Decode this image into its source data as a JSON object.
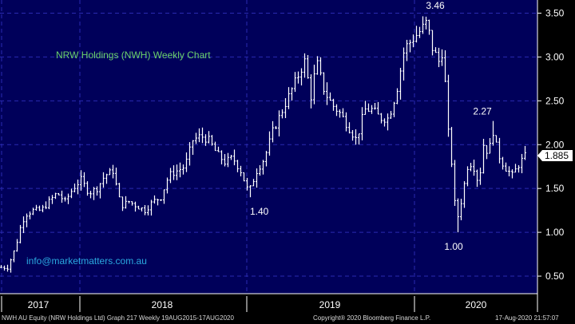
{
  "colors": {
    "background": "#00005a",
    "grid": "#2a2ab0",
    "bars": "#ffffff",
    "title": "#6cd36c",
    "email": "#2aa9e0",
    "axis_panel": "#000000"
  },
  "chart_data": {
    "type": "ohlc",
    "title": "NRW Holdings (NWH) Weekly Chart",
    "contact": "info@marketmatters.com.au",
    "ylim": [
      0.3,
      3.65
    ],
    "y_ticks": [
      "0.50",
      "1.00",
      "1.50",
      "2.00",
      "2.50",
      "3.00",
      "3.50"
    ],
    "x_ticks": [
      "2017",
      "2018",
      "2019",
      "2020"
    ],
    "last_price": "1.885",
    "annotations": [
      {
        "label": "1.40",
        "value": 1.4
      },
      {
        "label": "3.46",
        "value": 3.46
      },
      {
        "label": "1.00",
        "value": 1.0
      },
      {
        "label": "2.27",
        "value": 2.27
      }
    ],
    "anchors": [
      {
        "x": 0,
        "y": 0.6
      },
      {
        "x": 8,
        "y": 0.6
      },
      {
        "x": 10,
        "y": 0.66
      },
      {
        "x": 14,
        "y": 0.72
      },
      {
        "x": 16,
        "y": 0.78
      },
      {
        "x": 20,
        "y": 0.9
      },
      {
        "x": 24,
        "y": 1.05
      },
      {
        "x": 30,
        "y": 1.2
      },
      {
        "x": 40,
        "y": 1.25
      },
      {
        "x": 50,
        "y": 1.25
      },
      {
        "x": 60,
        "y": 1.35
      },
      {
        "x": 70,
        "y": 1.45
      },
      {
        "x": 80,
        "y": 1.35
      },
      {
        "x": 90,
        "y": 1.5
      },
      {
        "x": 100,
        "y": 1.6
      },
      {
        "x": 110,
        "y": 1.45
      },
      {
        "x": 120,
        "y": 1.5
      },
      {
        "x": 130,
        "y": 1.65
      },
      {
        "x": 140,
        "y": 1.7
      },
      {
        "x": 150,
        "y": 1.3
      },
      {
        "x": 160,
        "y": 1.35
      },
      {
        "x": 170,
        "y": 1.3
      },
      {
        "x": 180,
        "y": 1.25
      },
      {
        "x": 190,
        "y": 1.35
      },
      {
        "x": 200,
        "y": 1.4
      },
      {
        "x": 210,
        "y": 1.65
      },
      {
        "x": 220,
        "y": 1.7
      },
      {
        "x": 230,
        "y": 1.75
      },
      {
        "x": 240,
        "y": 2.05
      },
      {
        "x": 250,
        "y": 2.1
      },
      {
        "x": 260,
        "y": 2.05
      },
      {
        "x": 270,
        "y": 1.9
      },
      {
        "x": 280,
        "y": 1.8
      },
      {
        "x": 290,
        "y": 1.85
      },
      {
        "x": 300,
        "y": 1.7
      },
      {
        "x": 310,
        "y": 1.45
      },
      {
        "x": 320,
        "y": 1.7
      },
      {
        "x": 330,
        "y": 1.85
      },
      {
        "x": 340,
        "y": 2.15
      },
      {
        "x": 350,
        "y": 2.35
      },
      {
        "x": 360,
        "y": 2.55
      },
      {
        "x": 370,
        "y": 2.75
      },
      {
        "x": 380,
        "y": 2.95
      },
      {
        "x": 388,
        "y": 2.55
      },
      {
        "x": 395,
        "y": 2.95
      },
      {
        "x": 405,
        "y": 2.6
      },
      {
        "x": 415,
        "y": 2.45
      },
      {
        "x": 425,
        "y": 2.35
      },
      {
        "x": 435,
        "y": 2.2
      },
      {
        "x": 445,
        "y": 2.05
      },
      {
        "x": 455,
        "y": 2.4
      },
      {
        "x": 465,
        "y": 2.4
      },
      {
        "x": 475,
        "y": 2.3
      },
      {
        "x": 485,
        "y": 2.3
      },
      {
        "x": 495,
        "y": 2.6
      },
      {
        "x": 505,
        "y": 3.1
      },
      {
        "x": 515,
        "y": 3.2
      },
      {
        "x": 525,
        "y": 3.3
      },
      {
        "x": 533,
        "y": 3.4
      },
      {
        "x": 540,
        "y": 3.1
      },
      {
        "x": 548,
        "y": 2.95
      },
      {
        "x": 554,
        "y": 3.1
      },
      {
        "x": 558,
        "y": 2.3
      },
      {
        "x": 564,
        "y": 1.8
      },
      {
        "x": 570,
        "y": 1.1
      },
      {
        "x": 576,
        "y": 1.35
      },
      {
        "x": 584,
        "y": 1.75
      },
      {
        "x": 590,
        "y": 1.8
      },
      {
        "x": 598,
        "y": 1.55
      },
      {
        "x": 604,
        "y": 2.0
      },
      {
        "x": 610,
        "y": 1.9
      },
      {
        "x": 616,
        "y": 2.15
      },
      {
        "x": 622,
        "y": 1.9
      },
      {
        "x": 630,
        "y": 1.75
      },
      {
        "x": 640,
        "y": 1.65
      },
      {
        "x": 650,
        "y": 1.8
      },
      {
        "x": 658,
        "y": 1.89
      }
    ],
    "extremes": [
      {
        "x": 310,
        "low": 1.4
      },
      {
        "x": 533,
        "high": 3.46
      },
      {
        "x": 572,
        "low": 1.0
      },
      {
        "x": 616,
        "high": 2.27
      }
    ]
  },
  "footer": {
    "left": "NWH AU Equity (NRW Holdings Ltd) Graph 217  Weekly 19AUG2015-17AUG2020",
    "center": "Copyright® 2020 Bloomberg Finance L.P.",
    "right": "17-Aug-2020 21:57:07"
  }
}
